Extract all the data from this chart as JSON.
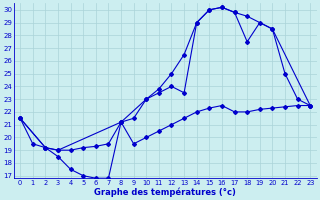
{
  "xlabel": "Graphe des températures (°c)",
  "xlim": [
    -0.5,
    23.5
  ],
  "ylim": [
    16.8,
    30.5
  ],
  "yticks": [
    17,
    18,
    19,
    20,
    21,
    22,
    23,
    24,
    25,
    26,
    27,
    28,
    29,
    30
  ],
  "xticks": [
    0,
    1,
    2,
    3,
    4,
    5,
    6,
    7,
    8,
    9,
    10,
    11,
    12,
    13,
    14,
    15,
    16,
    17,
    18,
    19,
    20,
    21,
    22,
    23
  ],
  "bg_color": "#cceef0",
  "line_color": "#0000cc",
  "grid_color": "#aad4d8",
  "line1_x": [
    0,
    1,
    2,
    3,
    4,
    5,
    6,
    7,
    8,
    9,
    10,
    11,
    12,
    13,
    14,
    15,
    16,
    17,
    18,
    20,
    23
  ],
  "line1_y": [
    21.5,
    19.5,
    19.2,
    19.0,
    19.0,
    19.2,
    19.3,
    19.5,
    21.2,
    21.5,
    23.0,
    23.5,
    24.0,
    23.5,
    29.0,
    30.0,
    30.2,
    29.8,
    29.5,
    28.5,
    22.5
  ],
  "line2_x": [
    0,
    2,
    3,
    8,
    10,
    11,
    12,
    13,
    14,
    15,
    16,
    17,
    18,
    19,
    20,
    21,
    22,
    23
  ],
  "line2_y": [
    21.5,
    19.2,
    19.0,
    21.2,
    23.0,
    23.8,
    25.0,
    26.5,
    29.0,
    30.0,
    30.2,
    29.8,
    27.5,
    29.0,
    28.5,
    25.0,
    23.0,
    22.5
  ],
  "line3_x": [
    0,
    2,
    3,
    4,
    5,
    6,
    7,
    8,
    9,
    10,
    11,
    12,
    13,
    14,
    15,
    16,
    17,
    18,
    19,
    20,
    21,
    22,
    23
  ],
  "line3_y": [
    21.5,
    19.2,
    18.5,
    17.5,
    17.0,
    16.8,
    16.8,
    21.2,
    19.5,
    20.0,
    20.5,
    21.0,
    21.5,
    22.0,
    22.3,
    22.5,
    22.0,
    22.0,
    22.2,
    22.3,
    22.4,
    22.5,
    22.5
  ]
}
